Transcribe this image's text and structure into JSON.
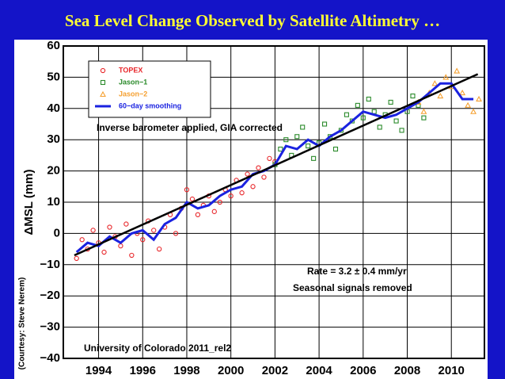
{
  "page_title": "Sea Level Change Observed by Satellite Altimetry …",
  "chart_data": {
    "type": "scatter",
    "y_label": "ΔMSL (mm)",
    "credit": "(Courtesy: Steve Nerem)",
    "annotations": [
      "Inverse barometer applied, GIA corrected",
      "Rate = 3.2 ± 0.4 mm/yr",
      "Seasonal signals removed",
      "University of Colorado 2011_rel2"
    ],
    "xlim": [
      1992.4,
      2011.5
    ],
    "ylim": [
      -40,
      60
    ],
    "xticks": [
      1994,
      1996,
      1998,
      2000,
      2002,
      2004,
      2006,
      2008,
      2010
    ],
    "yticks": [
      {
        "value": -40,
        "label": "−40"
      },
      {
        "value": -30,
        "label": "−30"
      },
      {
        "value": -20,
        "label": "−20"
      },
      {
        "value": -10,
        "label": "−10"
      },
      0,
      10,
      20,
      30,
      40,
      50,
      60
    ],
    "grid": true,
    "legend": "upper left",
    "series": [
      {
        "name": "TOPEX",
        "color": "#e8262a",
        "marker": "circle",
        "x": [
          1993.0,
          1993.25,
          1993.5,
          1993.75,
          1994.0,
          1994.25,
          1994.5,
          1994.75,
          1995.0,
          1995.25,
          1995.5,
          1995.75,
          1996.0,
          1996.25,
          1996.5,
          1996.75,
          1997.0,
          1997.25,
          1997.5,
          1997.75,
          1998.0,
          1998.25,
          1998.5,
          1998.75,
          1999.0,
          1999.25,
          1999.5,
          1999.75,
          2000.0,
          2000.25,
          2000.5,
          2000.75,
          2001.0,
          2001.25,
          2001.5,
          2001.75,
          2002.0
        ],
        "values": [
          -8,
          -2,
          -5,
          1,
          -3,
          -6,
          2,
          -1,
          -4,
          3,
          -7,
          0,
          -2,
          4,
          1,
          -5,
          2,
          6,
          0,
          8,
          14,
          11,
          6,
          9,
          12,
          7,
          10,
          14,
          12,
          17,
          13,
          19,
          15,
          21,
          18,
          24,
          23
        ]
      },
      {
        "name": "Jason−1",
        "color": "#2a8a2a",
        "marker": "square",
        "x": [
          2002.0,
          2002.25,
          2002.5,
          2002.75,
          2003.0,
          2003.25,
          2003.5,
          2003.75,
          2004.0,
          2004.25,
          2004.5,
          2004.75,
          2005.0,
          2005.25,
          2005.5,
          2005.75,
          2006.0,
          2006.25,
          2006.5,
          2006.75,
          2007.0,
          2007.25,
          2007.5,
          2007.75,
          2008.0,
          2008.25,
          2008.5,
          2008.75
        ],
        "values": [
          22,
          27,
          30,
          25,
          31,
          34,
          28,
          24,
          29,
          35,
          31,
          27,
          33,
          38,
          36,
          41,
          37,
          43,
          39,
          34,
          38,
          42,
          36,
          33,
          39,
          44,
          41,
          37
        ]
      },
      {
        "name": "Jason−2",
        "color": "#f5a030",
        "marker": "triangle",
        "x": [
          2008.5,
          2008.75,
          2009.0,
          2009.25,
          2009.5,
          2009.75,
          2010.0,
          2010.25,
          2010.5,
          2010.75,
          2011.0,
          2011.25
        ],
        "values": [
          42,
          39,
          45,
          48,
          44,
          50,
          47,
          52,
          45,
          41,
          39,
          43
        ]
      },
      {
        "name": "60−day smoothing",
        "color": "#1a22e0",
        "marker": "line",
        "x": [
          1993,
          1993.5,
          1994,
          1994.5,
          1995,
          1995.5,
          1996,
          1996.5,
          1997,
          1997.5,
          1998,
          1998.5,
          1999,
          1999.5,
          2000,
          2000.5,
          2001,
          2001.5,
          2002,
          2002.5,
          2003,
          2003.5,
          2004,
          2004.5,
          2005,
          2005.5,
          2006,
          2006.5,
          2007,
          2007.5,
          2008,
          2008.5,
          2009,
          2009.5,
          2010,
          2010.5,
          2011
        ],
        "values": [
          -6,
          -3,
          -4,
          -1,
          -3,
          0,
          1,
          -2,
          3,
          5,
          10,
          8,
          9,
          12,
          14,
          15,
          19,
          20,
          22,
          28,
          27,
          30,
          28,
          31,
          33,
          36,
          39,
          38,
          37,
          38,
          40,
          42,
          45,
          48,
          48,
          43,
          43
        ]
      }
    ],
    "trend": {
      "color": "#000000",
      "x": [
        1992.9,
        2011.2
      ],
      "values": [
        -7,
        51
      ]
    }
  }
}
